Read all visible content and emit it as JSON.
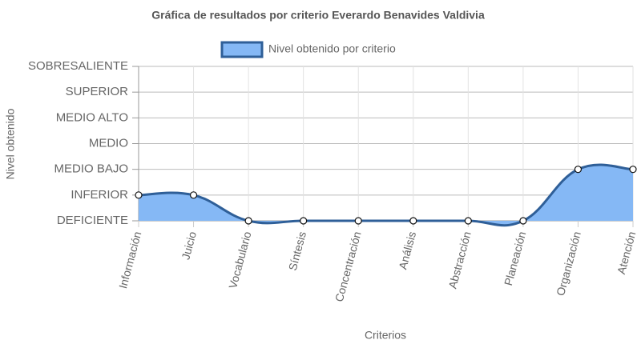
{
  "chart_data": {
    "type": "area",
    "title": "Gráfica de resultados por criterio Everardo Benavides Valdivia",
    "x_label": "Criterios",
    "y_label": "Nivel obtenido",
    "categories": [
      "Información",
      "Juicio",
      "Vocabulario",
      "Síntesis",
      "Concentración",
      "Análisis",
      "Abstracción",
      "Planeación",
      "Organización",
      "Atención"
    ],
    "series": [
      {
        "name": "Nivel obtenido por criterio",
        "color": "#2f5f98",
        "fill": "#85b8f5",
        "values": [
          1,
          1,
          0,
          0,
          0,
          0,
          0,
          0,
          2,
          2
        ]
      }
    ],
    "ylim": [
      0,
      6
    ],
    "yticks": [
      {
        "value": 0,
        "label": "DEFICIENTE"
      },
      {
        "value": 1,
        "label": "INFERIOR"
      },
      {
        "value": 2,
        "label": "MEDIO BAJO"
      },
      {
        "value": 3,
        "label": "MEDIO"
      },
      {
        "value": 4,
        "label": "MEDIO ALTO"
      },
      {
        "value": 5,
        "label": "SUPERIOR"
      },
      {
        "value": 6,
        "label": "SOBRESALIENTE"
      }
    ],
    "grid": true,
    "legend": "top"
  }
}
